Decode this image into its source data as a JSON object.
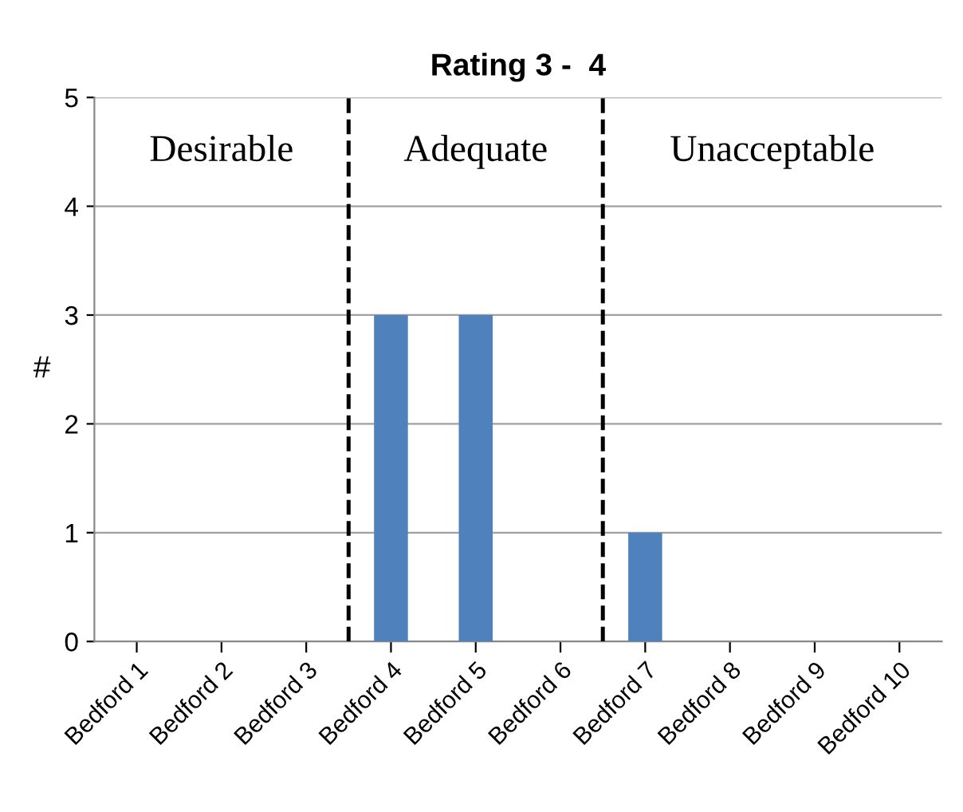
{
  "chart_data": {
    "type": "bar",
    "title": "Rating 3 -  4",
    "ylabel": "#",
    "categories": [
      "Bedford 1",
      "Bedford 2",
      "Bedford 3",
      "Bedford 4",
      "Bedford 5",
      "Bedford 6",
      "Bedford 7",
      "Bedford 8",
      "Bedford 9",
      "Bedford 10"
    ],
    "values": [
      0,
      0,
      0,
      3,
      3,
      0,
      1,
      0,
      0,
      0
    ],
    "color": "#4f81bd",
    "ylim": [
      0,
      5
    ],
    "yticks": [
      0,
      1,
      2,
      3,
      4,
      5
    ],
    "grid": "y",
    "legend": false,
    "annotations": [
      "Desirable",
      "Adequate",
      "Unacceptable"
    ]
  }
}
